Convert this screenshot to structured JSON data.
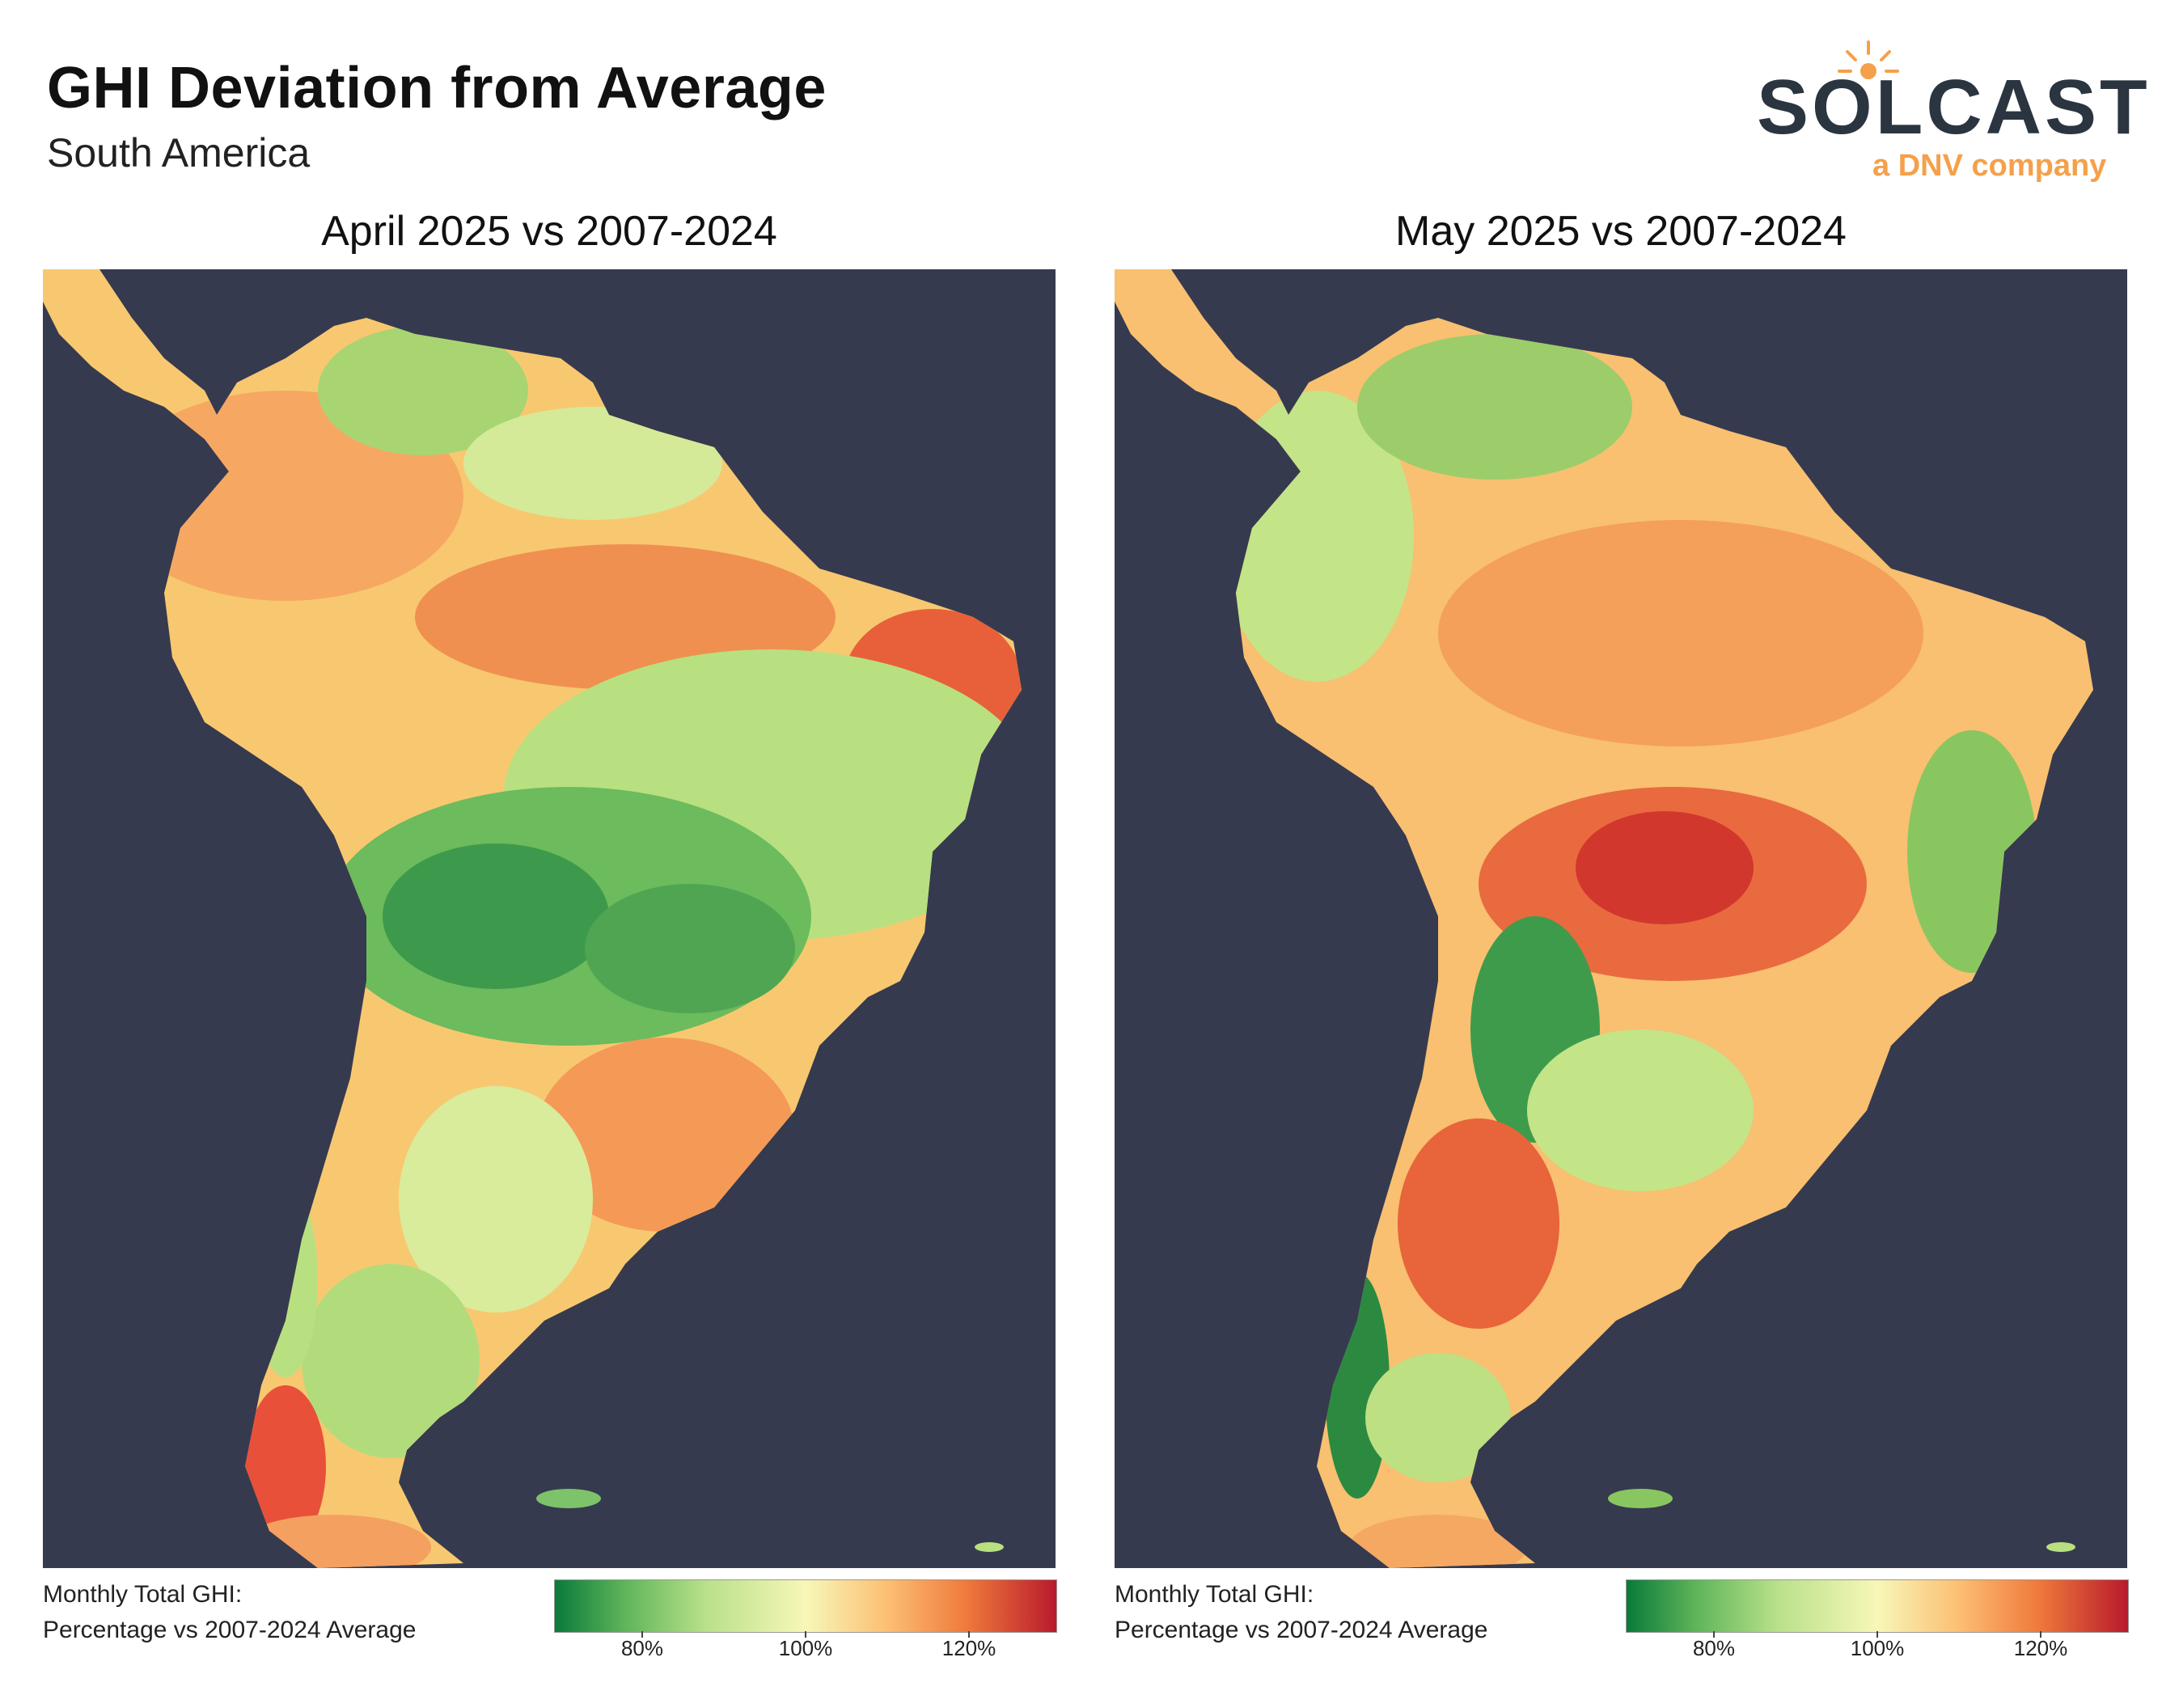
{
  "header": {
    "title": "GHI Deviation from Average",
    "subtitle": "South America"
  },
  "logo": {
    "wordmark": "SOLCAST",
    "tagline": "a DNV company",
    "brand_color": "#2a3540",
    "accent_color": "#f5a04a"
  },
  "panels": [
    {
      "title": "April 2025 vs 2007-2024",
      "legend_line1": "Monthly Total GHI:",
      "legend_line2": "Percentage vs 2007-2024 Average",
      "ticks": [
        "80%",
        "100%",
        "120%"
      ],
      "regions": {
        "northwest": "orange",
        "northeast_coast": "red-orange",
        "central_brazil": "green",
        "bolivia_paraguay": "dark-green",
        "uruguay_south_brazil": "orange",
        "patagonia": "light-green",
        "southern_chile": "red"
      }
    },
    {
      "title": "May 2025 vs 2007-2024",
      "legend_line1": "Monthly Total GHI:",
      "legend_line2": "Percentage vs 2007-2024 Average",
      "ticks": [
        "80%",
        "100%",
        "120%"
      ],
      "regions": {
        "northwest": "light-green",
        "amazon": "orange",
        "central_brazil": "red",
        "east_coast_brazil": "green",
        "argentina_north": "dark-green",
        "argentina_central": "red-orange",
        "southern_chile": "dark-green"
      }
    }
  ],
  "colorscale": {
    "min_label": "80%",
    "mid_label": "100%",
    "max_label": "120%",
    "low_color": "#0a7a3a",
    "mid_color": "#f7f7b8",
    "high_color": "#b81a2c",
    "ocean_color": "#363a4f"
  }
}
